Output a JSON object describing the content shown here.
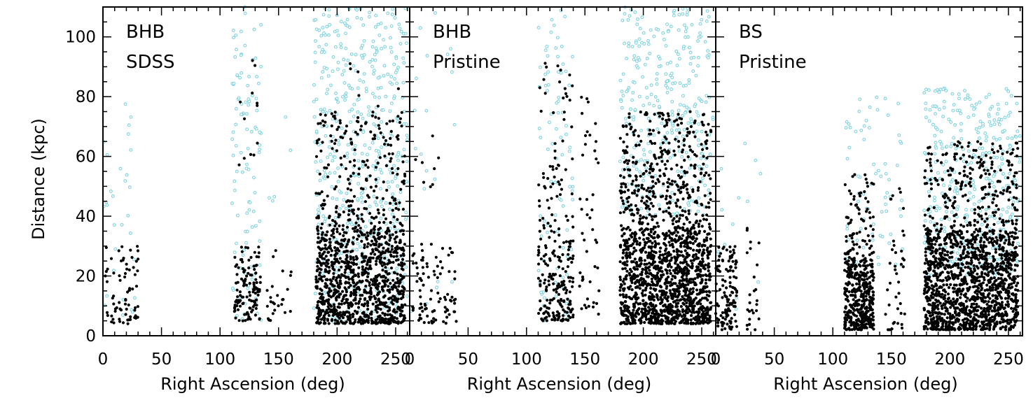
{
  "chart_data": [
    {
      "type": "scatter",
      "labels": [
        "BHB",
        "SDSS"
      ],
      "xlabel": "Right Ascension (deg)",
      "ylabel": "Distance (kpc)",
      "xlim": [
        0,
        262
      ],
      "ylim": [
        0,
        110
      ],
      "xticks": [
        0,
        50,
        100,
        150,
        200,
        250
      ],
      "yticks": [
        0,
        20,
        40,
        60,
        80,
        100
      ],
      "series": [
        {
          "color": "#000000",
          "clusters": [
            {
              "x": [
                2,
                30
              ],
              "y": [
                4,
                30
              ],
              "n": 70
            },
            {
              "x": [
                112,
                135
              ],
              "y": [
                5,
                30
              ],
              "n": 120
            },
            {
              "x": [
                115,
                132
              ],
              "y": [
                55,
                95
              ],
              "n": 12
            },
            {
              "x": [
                140,
                162
              ],
              "y": [
                5,
                30
              ],
              "n": 25
            },
            {
              "x": [
                182,
                258
              ],
              "y": [
                4,
                35
              ],
              "n": 950
            },
            {
              "x": [
                182,
                258
              ],
              "y": [
                35,
                75
              ],
              "n": 260
            },
            {
              "x": [
                200,
                255
              ],
              "y": [
                75,
                92
              ],
              "n": 6
            }
          ]
        },
        {
          "color": "#7fd3de",
          "clusters": [
            {
              "x": [
                0,
                28
              ],
              "y": [
                4,
                80
              ],
              "n": 30
            },
            {
              "x": [
                110,
                135
              ],
              "y": [
                5,
                110
              ],
              "n": 110
            },
            {
              "x": [
                140,
                162
              ],
              "y": [
                40,
                75
              ],
              "n": 5
            },
            {
              "x": [
                180,
                260
              ],
              "y": [
                4,
                110
              ],
              "n": 520
            }
          ]
        }
      ]
    },
    {
      "type": "scatter",
      "labels": [
        "BHB",
        "Pristine"
      ],
      "xlabel": "Right Ascension (deg)",
      "ylabel": "",
      "xlim": [
        0,
        262
      ],
      "ylim": [
        0,
        110
      ],
      "xticks": [
        0,
        50,
        100,
        150,
        200,
        250
      ],
      "yticks": [
        0,
        20,
        40,
        60,
        80,
        100
      ],
      "series": [
        {
          "color": "#000000",
          "clusters": [
            {
              "x": [
                2,
                40
              ],
              "y": [
                4,
                32
              ],
              "n": 90
            },
            {
              "x": [
                2,
                25
              ],
              "y": [
                40,
                70
              ],
              "n": 8
            },
            {
              "x": [
                110,
                140
              ],
              "y": [
                5,
                30
              ],
              "n": 160
            },
            {
              "x": [
                110,
                140
              ],
              "y": [
                30,
                95
              ],
              "n": 80
            },
            {
              "x": [
                145,
                162
              ],
              "y": [
                5,
                80
              ],
              "n": 45
            },
            {
              "x": [
                180,
                258
              ],
              "y": [
                4,
                35
              ],
              "n": 1200
            },
            {
              "x": [
                180,
                258
              ],
              "y": [
                35,
                75
              ],
              "n": 420
            }
          ]
        },
        {
          "color": "#7fd3de",
          "clusters": [
            {
              "x": [
                0,
                40
              ],
              "y": [
                5,
                110
              ],
              "n": 20
            },
            {
              "x": [
                110,
                140
              ],
              "y": [
                5,
                110
              ],
              "n": 90
            },
            {
              "x": [
                180,
                260
              ],
              "y": [
                40,
                110
              ],
              "n": 330
            }
          ]
        }
      ]
    },
    {
      "type": "scatter",
      "labels": [
        "BS",
        "Pristine"
      ],
      "xlabel": "Right Ascension (deg)",
      "ylabel": "",
      "xlim": [
        0,
        262
      ],
      "ylim": [
        0,
        110
      ],
      "xticks": [
        0,
        50,
        100,
        150,
        200,
        250
      ],
      "yticks": [
        0,
        20,
        40,
        60,
        80,
        100
      ],
      "series": [
        {
          "color": "#000000",
          "clusters": [
            {
              "x": [
                0,
                18
              ],
              "y": [
                2,
                30
              ],
              "n": 120
            },
            {
              "x": [
                25,
                38
              ],
              "y": [
                2,
                38
              ],
              "n": 25
            },
            {
              "x": [
                110,
                135
              ],
              "y": [
                2,
                25
              ],
              "n": 380
            },
            {
              "x": [
                110,
                135
              ],
              "y": [
                25,
                55
              ],
              "n": 90
            },
            {
              "x": [
                145,
                162
              ],
              "y": [
                2,
                50
              ],
              "n": 40
            },
            {
              "x": [
                178,
                258
              ],
              "y": [
                2,
                35
              ],
              "n": 1300
            },
            {
              "x": [
                178,
                258
              ],
              "y": [
                35,
                65
              ],
              "n": 260
            }
          ]
        },
        {
          "color": "#7fd3de",
          "clusters": [
            {
              "x": [
                0,
                40
              ],
              "y": [
                5,
                65
              ],
              "n": 15
            },
            {
              "x": [
                110,
                160
              ],
              "y": [
                20,
                80
              ],
              "n": 70
            },
            {
              "x": [
                178,
                260
              ],
              "y": [
                20,
                83
              ],
              "n": 380
            }
          ]
        }
      ]
    }
  ]
}
